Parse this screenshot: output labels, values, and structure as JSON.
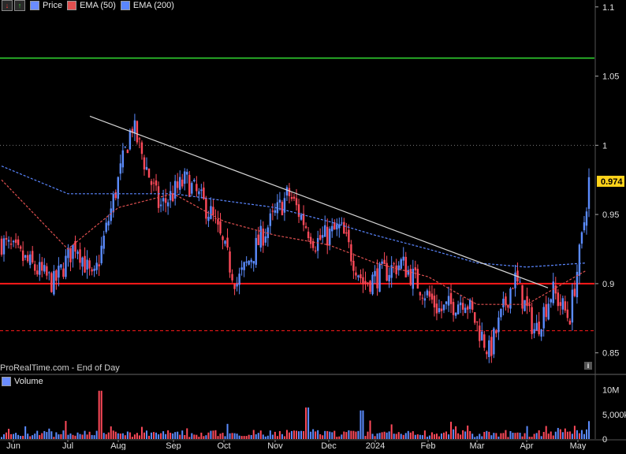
{
  "legend": {
    "price_label": "Price",
    "ema50_label": "EMA (50)",
    "ema200_label": "EMA (200)",
    "volume_label": "Volume"
  },
  "watermark": "ProRealTime.com - End of Day",
  "info_icon": "info-icon",
  "colors": {
    "background": "#000000",
    "up_candle": "#5b8cff",
    "down_candle": "#ff4a5a",
    "ema50": "#e05050",
    "ema200": "#5a86ff",
    "support_line": "#ff1a1a",
    "resistance_line": "#2ecc2e",
    "trendline": "#d8d8d8",
    "price_badge": "#ffd21a"
  },
  "chart_data": {
    "type": "candlestick",
    "title": "",
    "y_axis": {
      "ticks": [
        "1.1",
        "1.05",
        "1",
        "0.95",
        "0.9",
        "0.85"
      ],
      "ylim": [
        0.835,
        1.105
      ]
    },
    "x_axis": {
      "labels": [
        "Jun",
        "Jul",
        "Aug",
        "Sep",
        "Oct",
        "Nov",
        "Dec",
        "2024",
        "Feb",
        "Mar",
        "Apr",
        "May"
      ]
    },
    "last_price": "0.974",
    "horizontal_lines": [
      {
        "name": "resistance",
        "value": 1.063,
        "style": "solid"
      },
      {
        "name": "support",
        "value": 0.9,
        "style": "solid"
      },
      {
        "name": "lower-support",
        "value": 0.866,
        "style": "dashed"
      },
      {
        "name": "reference",
        "value": 1.0,
        "style": "dotted"
      }
    ],
    "trendline": {
      "start": [
        "Jul",
        1.021
      ],
      "end": [
        "Apr",
        0.897
      ]
    },
    "price_anchors": [
      [
        "Jun",
        0.93
      ],
      [
        "Jun",
        0.9
      ],
      [
        "Jul",
        0.93
      ],
      [
        "Jul",
        0.9
      ],
      [
        "Jul",
        0.95
      ],
      [
        "Aug",
        1.015
      ],
      [
        "Aug",
        0.955
      ],
      [
        "Sep",
        0.975
      ],
      [
        "Sep",
        0.95
      ],
      [
        "Oct",
        0.9
      ],
      [
        "Oct",
        0.935
      ],
      [
        "Nov",
        0.965
      ],
      [
        "Nov",
        0.93
      ],
      [
        "Dec",
        0.94
      ],
      [
        "Dec",
        0.9
      ],
      [
        "2024",
        0.915
      ],
      [
        "Feb",
        0.88
      ],
      [
        "Feb",
        0.89
      ],
      [
        "Mar",
        0.85
      ],
      [
        "Mar",
        0.905
      ],
      [
        "Apr",
        0.865
      ],
      [
        "Apr",
        0.895
      ],
      [
        "Apr",
        0.875
      ],
      [
        "May",
        0.93
      ],
      [
        "May",
        0.974
      ]
    ],
    "ema50_points": [
      [
        "Jun",
        0.975
      ],
      [
        "Jul",
        0.925
      ],
      [
        "Aug",
        0.955
      ],
      [
        "Sep",
        0.965
      ],
      [
        "Oct",
        0.945
      ],
      [
        "Nov",
        0.935
      ],
      [
        "Dec",
        0.928
      ],
      [
        "2024",
        0.915
      ],
      [
        "Feb",
        0.905
      ],
      [
        "Mar",
        0.885
      ],
      [
        "Apr",
        0.885
      ],
      [
        "May",
        0.91
      ]
    ],
    "ema200_points": [
      [
        "Jun",
        0.985
      ],
      [
        "Jul",
        0.965
      ],
      [
        "Aug",
        0.965
      ],
      [
        "Sep",
        0.965
      ],
      [
        "Oct",
        0.96
      ],
      [
        "Nov",
        0.955
      ],
      [
        "Dec",
        0.945
      ],
      [
        "2024",
        0.935
      ],
      [
        "Feb",
        0.925
      ],
      [
        "Mar",
        0.915
      ],
      [
        "Apr",
        0.912
      ],
      [
        "May",
        0.915
      ]
    ],
    "volume": {
      "axis_labels": [
        "10M",
        "5,000k",
        "0"
      ],
      "ylim": [
        0,
        12000000
      ],
      "spikes": [
        [
          "Jul",
          9800000
        ],
        [
          "Nov",
          6400000
        ],
        [
          "Dec",
          5800000
        ]
      ]
    }
  }
}
